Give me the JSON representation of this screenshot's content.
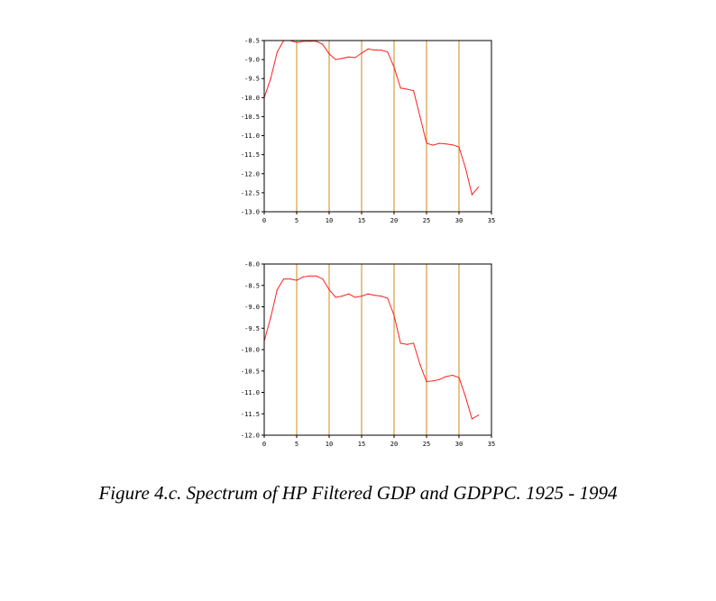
{
  "colors": {
    "line": "#ff2020",
    "vline": "#d08a18",
    "frame": "#000000"
  },
  "caption": "Figure 4.c.  Spectrum of HP Filtered GDP and GDPPC. 1925 - 1994",
  "chart_data": [
    {
      "type": "line",
      "xlim": [
        0,
        35
      ],
      "ylim": [
        -13.0,
        -8.5
      ],
      "xticks": [
        0,
        5,
        10,
        15,
        20,
        25,
        30,
        35
      ],
      "xtick_labels": [
        "0",
        "5",
        "10",
        "15",
        "20",
        "25",
        "30",
        "35"
      ],
      "yticks": [
        -8.5,
        -9.0,
        -9.5,
        -10.0,
        -10.5,
        -11.0,
        -11.5,
        -12.0,
        -12.5,
        -13.0
      ],
      "ytick_labels": [
        "-8.5",
        "-9.0",
        "-9.5",
        "-10.0",
        "-10.5",
        "-11.0",
        "-11.5",
        "-12.0",
        "-12.5",
        "-13.0"
      ],
      "vlines": [
        5,
        10,
        15,
        20,
        25,
        30
      ],
      "series": [
        {
          "x": [
            0,
            1,
            2,
            3,
            4,
            5,
            6,
            7,
            8,
            9,
            10,
            11,
            12,
            13,
            14,
            15,
            16,
            17,
            18,
            19,
            20,
            21,
            22,
            23,
            24,
            25,
            26,
            27,
            28,
            29,
            30,
            31,
            32,
            33
          ],
          "y": [
            -10.0,
            -9.5,
            -8.8,
            -8.5,
            -8.5,
            -8.55,
            -8.52,
            -8.52,
            -8.52,
            -8.6,
            -8.85,
            -9.0,
            -8.97,
            -8.93,
            -8.95,
            -8.83,
            -8.72,
            -8.75,
            -8.75,
            -8.8,
            -9.2,
            -9.75,
            -9.78,
            -9.82,
            -10.5,
            -11.2,
            -11.25,
            -11.2,
            -11.22,
            -11.24,
            -11.3,
            -11.85,
            -12.55,
            -12.35
          ]
        }
      ]
    },
    {
      "type": "line",
      "xlim": [
        0,
        35
      ],
      "ylim": [
        -12.0,
        -8.0
      ],
      "xticks": [
        0,
        5,
        10,
        15,
        20,
        25,
        30,
        35
      ],
      "xtick_labels": [
        "0",
        "5",
        "10",
        "15",
        "20",
        "25",
        "30",
        "35"
      ],
      "yticks": [
        -8.0,
        -8.5,
        -9.0,
        -9.5,
        -10.0,
        -10.5,
        -11.0,
        -11.5,
        -12.0
      ],
      "ytick_labels": [
        "-8.0",
        "-8.5",
        "-9.0",
        "-9.5",
        "-10.0",
        "-10.5",
        "-11.0",
        "-11.5",
        "-12.0"
      ],
      "vlines": [
        5,
        10,
        15,
        20,
        25,
        30
      ],
      "series": [
        {
          "x": [
            0,
            1,
            2,
            3,
            4,
            5,
            6,
            7,
            8,
            9,
            10,
            11,
            12,
            13,
            14,
            15,
            16,
            17,
            18,
            19,
            20,
            21,
            22,
            23,
            24,
            25,
            26,
            27,
            28,
            29,
            30,
            31,
            32,
            33
          ],
          "y": [
            -9.8,
            -9.25,
            -8.6,
            -8.35,
            -8.35,
            -8.38,
            -8.3,
            -8.28,
            -8.28,
            -8.35,
            -8.6,
            -8.78,
            -8.75,
            -8.7,
            -8.78,
            -8.75,
            -8.7,
            -8.73,
            -8.75,
            -8.8,
            -9.2,
            -9.85,
            -9.88,
            -9.85,
            -10.35,
            -10.75,
            -10.73,
            -10.7,
            -10.63,
            -10.6,
            -10.65,
            -11.1,
            -11.62,
            -11.53
          ]
        }
      ]
    }
  ]
}
